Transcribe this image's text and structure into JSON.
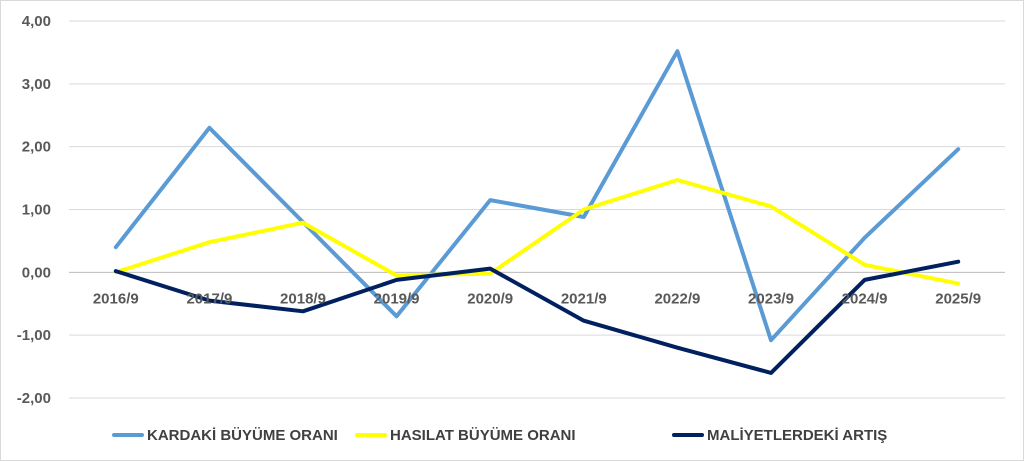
{
  "chart_data": {
    "type": "line",
    "title": "",
    "xlabel": "",
    "ylabel": "",
    "categories": [
      "2016/9",
      "2017/9",
      "2018/9",
      "2019/9",
      "2020/9",
      "2021/9",
      "2022/9",
      "2023/9",
      "2024/9",
      "2025/9"
    ],
    "ylim": [
      -2,
      4
    ],
    "yticks": [
      "-2,00",
      "-1,00",
      "0,00",
      "1,00",
      "2,00",
      "3,00",
      "4,00"
    ],
    "grid": true,
    "legend_position": "bottom",
    "series": [
      {
        "name": "KARDAKİ BÜYÜME ORANI",
        "color": "#5b9bd5",
        "values": [
          0.4,
          2.3,
          0.8,
          -0.7,
          1.15,
          0.88,
          3.52,
          -1.08,
          0.55,
          1.96
        ]
      },
      {
        "name": "HASILAT BÜYÜME ORANI",
        "color": "#ffff00",
        "values": [
          0.0,
          0.48,
          0.79,
          -0.05,
          -0.02,
          1.0,
          1.47,
          1.05,
          0.12,
          -0.18
        ]
      },
      {
        "name": "MALİYETLERDEKİ ARTIŞ",
        "color": "#002060",
        "values": [
          0.02,
          -0.45,
          -0.62,
          -0.12,
          0.06,
          -0.77,
          -1.2,
          -1.6,
          -0.12,
          0.17
        ]
      }
    ]
  }
}
